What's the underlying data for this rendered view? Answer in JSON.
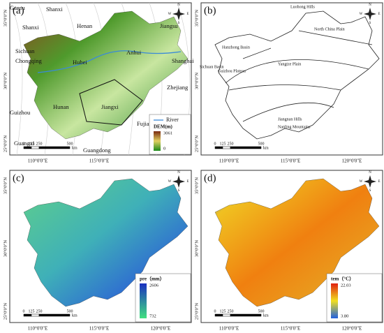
{
  "panels": [
    {
      "label": "(a)",
      "places": [
        "Gansu",
        "Shanxi",
        "Shanxi",
        "Henan",
        "Jiangsu",
        "Anhui",
        "Shanghai",
        "Sichuan",
        "Chongqing",
        "Hubei",
        "Zhejiang",
        "Hunan",
        "Jiangxi",
        "Guizhou",
        "Fujian",
        "Guangxi",
        "Guangdong"
      ],
      "legend": {
        "river": "River",
        "title": "DEM(m)",
        "max": "3061",
        "min": "0"
      }
    },
    {
      "label": "(b)",
      "places": [
        "Luohong Hills",
        "North China Plain",
        "Hanzhong Basin",
        "Sichuan Basin",
        "Guizhou Plateau",
        "Yangtze Plain",
        "Jiangnan Hills",
        "Nanling Mountains"
      ]
    },
    {
      "label": "(c)",
      "legend": {
        "title": "pre（mm）",
        "max": "2606",
        "min": "732"
      }
    },
    {
      "label": "(d)",
      "legend": {
        "title": "tem（°C）",
        "max": "22.03",
        "min": "3.80"
      }
    }
  ],
  "lon_labels": [
    "110°0'0\"E",
    "115°0'0\"E",
    "120°0'0\"E"
  ],
  "lat_labels": [
    "35°0'0\"N",
    "30°0'0\"N",
    "25°0'0\"N"
  ],
  "scale": {
    "ticks": [
      "0",
      "125",
      "250",
      "500"
    ],
    "unit": "km"
  },
  "compass": [
    "N",
    "W",
    "E",
    "S"
  ]
}
